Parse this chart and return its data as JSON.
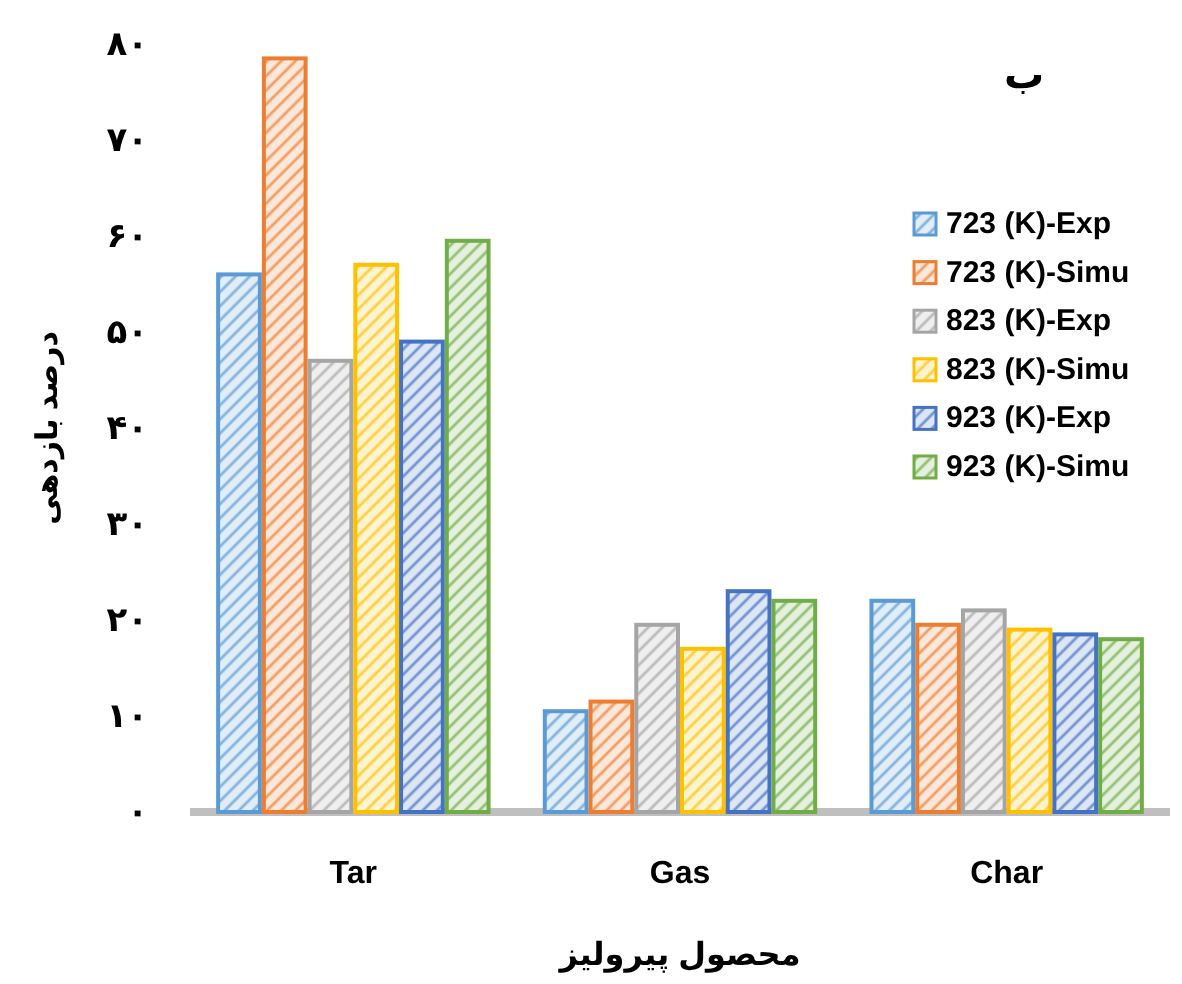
{
  "chart_data": {
    "type": "bar",
    "title": "ب",
    "xlabel": "محصول پیرولیز",
    "ylabel": "درصد بازدهی",
    "categories": [
      "Tar",
      "Gas",
      "Char"
    ],
    "series": [
      {
        "name": "723 (K)-Exp",
        "color": "#5b9bd5",
        "values": [
          56,
          10.5,
          22
        ]
      },
      {
        "name": "723 (K)-Simu",
        "color": "#ed7d31",
        "values": [
          78.5,
          11.5,
          19.5
        ]
      },
      {
        "name": "823 (K)-Exp",
        "color": "#a5a5a5",
        "values": [
          47,
          19.5,
          21
        ]
      },
      {
        "name": "823 (K)-Simu",
        "color": "#ffc000",
        "values": [
          57,
          17,
          19
        ]
      },
      {
        "name": "923 (K)-Exp",
        "color": "#4472c4",
        "values": [
          49,
          23,
          18.5
        ]
      },
      {
        "name": "923 (K)-Simu",
        "color": "#70ad47",
        "values": [
          59.5,
          22,
          18
        ]
      }
    ],
    "ylim": [
      0,
      80
    ],
    "yticks": [
      {
        "value": 0,
        "label": "۰"
      },
      {
        "value": 10,
        "label": "۱۰"
      },
      {
        "value": 20,
        "label": "۲۰"
      },
      {
        "value": 30,
        "label": "۳۰"
      },
      {
        "value": 40,
        "label": "۴۰"
      },
      {
        "value": 50,
        "label": "۵۰"
      },
      {
        "value": 60,
        "label": "۶۰"
      },
      {
        "value": 70,
        "label": "۷۰"
      },
      {
        "value": 80,
        "label": "۸۰"
      }
    ],
    "grid": false,
    "legend": "right"
  }
}
